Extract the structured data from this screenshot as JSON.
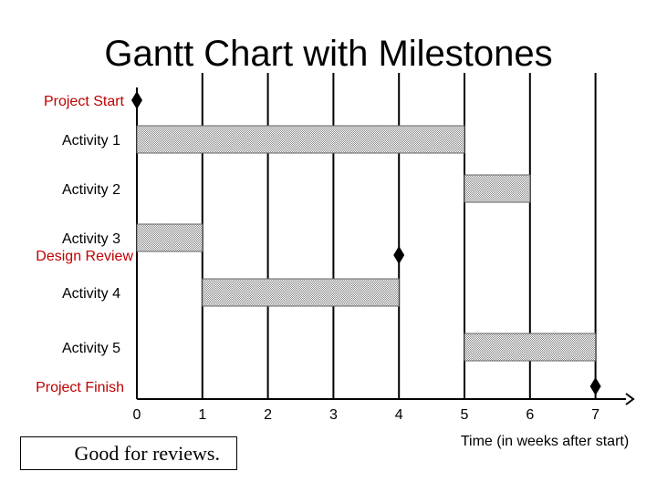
{
  "chart_data": {
    "type": "gantt",
    "title": "Gantt Chart with Milestones",
    "xlabel": "Time (in weeks after start)",
    "xlim": [
      0,
      7
    ],
    "x_ticks": [
      0,
      1,
      2,
      3,
      4,
      5,
      6,
      7
    ],
    "grid": "vertical",
    "rows": [
      {
        "label": "Project Start",
        "kind": "milestone",
        "at": 0,
        "color": "#c00000"
      },
      {
        "label": "Activity 1",
        "kind": "activity",
        "start": 0,
        "end": 5
      },
      {
        "label": "Activity 2",
        "kind": "activity",
        "start": 5,
        "end": 6
      },
      {
        "label": "Activity 3",
        "kind": "activity",
        "start": 0,
        "end": 1
      },
      {
        "label": "Design Review",
        "kind": "milestone",
        "at": 4,
        "color": "#c00000"
      },
      {
        "label": "Activity 4",
        "kind": "activity",
        "start": 1,
        "end": 4
      },
      {
        "label": "Activity 5",
        "kind": "activity",
        "start": 5,
        "end": 7
      },
      {
        "label": "Project Finish",
        "kind": "milestone",
        "at": 7,
        "color": "#c00000"
      }
    ]
  },
  "note": "Good for reviews."
}
